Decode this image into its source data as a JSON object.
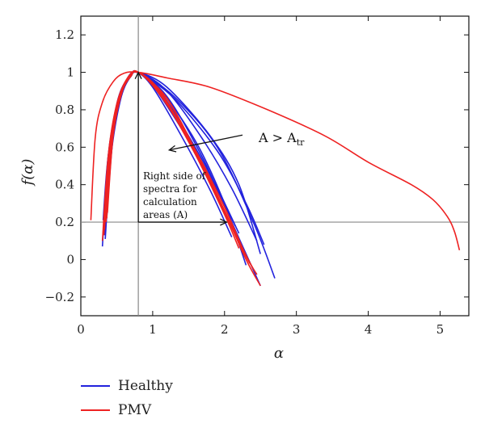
{
  "chart_data": {
    "type": "line",
    "xlabel": "α",
    "ylabel": "f(α)",
    "xlim": [
      0,
      5.4
    ],
    "ylim": [
      -0.3,
      1.3
    ],
    "x_ticks": [
      0,
      1,
      2,
      3,
      4,
      5
    ],
    "y_ticks": [
      -0.2,
      0,
      0.2,
      0.4,
      0.6,
      0.8,
      1,
      1.2
    ],
    "y_tick_labels": [
      "−0.2",
      "0",
      "0.2",
      "0.4",
      "0.6",
      "0.8",
      "1",
      "1.2"
    ],
    "grid": false,
    "legend_position": "bottom-left, below plot",
    "reference_lines": {
      "vertical_x": 0.8,
      "horizontal_y": 0.2
    },
    "annotations": {
      "inequality": {
        "main": "A > A",
        "subscript": "tr"
      },
      "right_side_note": [
        "Right side of",
        "spectra for",
        "calculation",
        "areas (A)"
      ]
    },
    "series": [
      {
        "name": "Healthy",
        "color": "#2222dd",
        "curves": [
          [
            [
              0.3,
              0.07
            ],
            [
              0.38,
              0.55
            ],
            [
              0.5,
              0.82
            ],
            [
              0.65,
              0.97
            ],
            [
              0.78,
              1.0
            ],
            [
              1.0,
              0.92
            ],
            [
              1.4,
              0.66
            ],
            [
              1.8,
              0.37
            ],
            [
              2.1,
              0.12
            ]
          ],
          [
            [
              0.31,
              0.21
            ],
            [
              0.38,
              0.55
            ],
            [
              0.52,
              0.85
            ],
            [
              0.66,
              0.97
            ],
            [
              0.79,
              1.0
            ],
            [
              1.0,
              0.93
            ],
            [
              1.4,
              0.7
            ],
            [
              1.8,
              0.44
            ],
            [
              2.15,
              0.18
            ]
          ],
          [
            [
              0.33,
              0.25
            ],
            [
              0.4,
              0.6
            ],
            [
              0.52,
              0.86
            ],
            [
              0.66,
              0.97
            ],
            [
              0.8,
              1.0
            ],
            [
              1.1,
              0.9
            ],
            [
              1.5,
              0.66
            ],
            [
              1.9,
              0.38
            ],
            [
              2.2,
              0.14
            ]
          ],
          [
            [
              0.34,
              0.11
            ],
            [
              0.42,
              0.55
            ],
            [
              0.55,
              0.85
            ],
            [
              0.68,
              0.97
            ],
            [
              0.8,
              1.0
            ],
            [
              1.1,
              0.91
            ],
            [
              1.6,
              0.63
            ],
            [
              2.0,
              0.3
            ],
            [
              2.3,
              -0.03
            ]
          ],
          [
            [
              0.35,
              0.2
            ],
            [
              0.44,
              0.63
            ],
            [
              0.56,
              0.87
            ],
            [
              0.69,
              0.98
            ],
            [
              0.8,
              1.0
            ],
            [
              1.2,
              0.87
            ],
            [
              1.7,
              0.54
            ],
            [
              2.1,
              0.2
            ],
            [
              2.5,
              -0.14
            ]
          ],
          [
            [
              0.33,
              0.13
            ],
            [
              0.42,
              0.58
            ],
            [
              0.55,
              0.86
            ],
            [
              0.68,
              0.97
            ],
            [
              0.8,
              1.0
            ],
            [
              1.2,
              0.9
            ],
            [
              1.7,
              0.64
            ],
            [
              2.1,
              0.38
            ],
            [
              2.45,
              0.1
            ]
          ],
          [
            [
              0.34,
              0.18
            ],
            [
              0.43,
              0.62
            ],
            [
              0.56,
              0.88
            ],
            [
              0.69,
              0.98
            ],
            [
              0.8,
              1.0
            ],
            [
              1.2,
              0.92
            ],
            [
              1.8,
              0.66
            ],
            [
              2.2,
              0.4
            ],
            [
              2.5,
              0.03
            ]
          ],
          [
            [
              0.35,
              0.2
            ],
            [
              0.44,
              0.64
            ],
            [
              0.57,
              0.89
            ],
            [
              0.7,
              0.98
            ],
            [
              0.8,
              1.0
            ],
            [
              1.3,
              0.86
            ],
            [
              1.9,
              0.58
            ],
            [
              2.3,
              0.3
            ],
            [
              2.55,
              0.08
            ]
          ],
          [
            [
              0.36,
              0.22
            ],
            [
              0.45,
              0.66
            ],
            [
              0.58,
              0.9
            ],
            [
              0.7,
              0.98
            ],
            [
              0.8,
              1.0
            ],
            [
              1.3,
              0.87
            ],
            [
              1.9,
              0.6
            ],
            [
              2.4,
              0.2
            ],
            [
              2.7,
              -0.1
            ]
          ]
        ]
      },
      {
        "name": "PMV",
        "color": "#ee2222",
        "curves": [
          [
            [
              0.14,
              0.21
            ],
            [
              0.2,
              0.65
            ],
            [
              0.3,
              0.84
            ],
            [
              0.45,
              0.95
            ],
            [
              0.6,
              0.995
            ],
            [
              0.8,
              1.0
            ],
            [
              1.2,
              0.97
            ],
            [
              1.8,
              0.92
            ],
            [
              2.6,
              0.8
            ],
            [
              3.4,
              0.66
            ],
            [
              4.0,
              0.52
            ],
            [
              4.6,
              0.4
            ],
            [
              4.9,
              0.32
            ],
            [
              5.1,
              0.23
            ],
            [
              5.2,
              0.15
            ],
            [
              5.27,
              0.05
            ]
          ],
          [
            [
              0.3,
              0.1
            ],
            [
              0.38,
              0.55
            ],
            [
              0.5,
              0.83
            ],
            [
              0.65,
              0.97
            ],
            [
              0.8,
              1.0
            ],
            [
              1.1,
              0.9
            ],
            [
              1.5,
              0.63
            ],
            [
              1.9,
              0.33
            ],
            [
              2.2,
              0.09
            ],
            [
              2.35,
              -0.02
            ]
          ],
          [
            [
              0.32,
              0.13
            ],
            [
              0.4,
              0.58
            ],
            [
              0.52,
              0.85
            ],
            [
              0.66,
              0.97
            ],
            [
              0.8,
              1.0
            ],
            [
              1.1,
              0.9
            ],
            [
              1.5,
              0.64
            ],
            [
              1.9,
              0.34
            ],
            [
              2.25,
              0.06
            ],
            [
              2.4,
              -0.05
            ]
          ],
          [
            [
              0.33,
              0.16
            ],
            [
              0.41,
              0.6
            ],
            [
              0.53,
              0.86
            ],
            [
              0.67,
              0.97
            ],
            [
              0.8,
              1.0
            ],
            [
              1.1,
              0.88
            ],
            [
              1.6,
              0.58
            ],
            [
              2.0,
              0.28
            ],
            [
              2.3,
              0.02
            ],
            [
              2.45,
              -0.08
            ]
          ],
          [
            [
              0.35,
              0.2
            ],
            [
              0.43,
              0.62
            ],
            [
              0.55,
              0.87
            ],
            [
              0.68,
              0.98
            ],
            [
              0.8,
              1.0
            ],
            [
              1.1,
              0.89
            ],
            [
              1.6,
              0.56
            ],
            [
              2.0,
              0.26
            ],
            [
              2.3,
              0.0
            ],
            [
              2.5,
              -0.14
            ]
          ],
          [
            [
              0.36,
              0.22
            ],
            [
              0.44,
              0.64
            ],
            [
              0.56,
              0.88
            ],
            [
              0.69,
              0.98
            ],
            [
              0.8,
              1.0
            ],
            [
              1.2,
              0.86
            ],
            [
              1.6,
              0.58
            ],
            [
              2.0,
              0.26
            ],
            [
              2.25,
              0.04
            ]
          ],
          [
            [
              0.37,
              0.25
            ],
            [
              0.45,
              0.66
            ],
            [
              0.57,
              0.89
            ],
            [
              0.7,
              0.98
            ],
            [
              0.8,
              1.0
            ],
            [
              1.2,
              0.86
            ],
            [
              1.6,
              0.56
            ],
            [
              2.0,
              0.24
            ],
            [
              2.2,
              0.06
            ]
          ]
        ]
      }
    ]
  }
}
